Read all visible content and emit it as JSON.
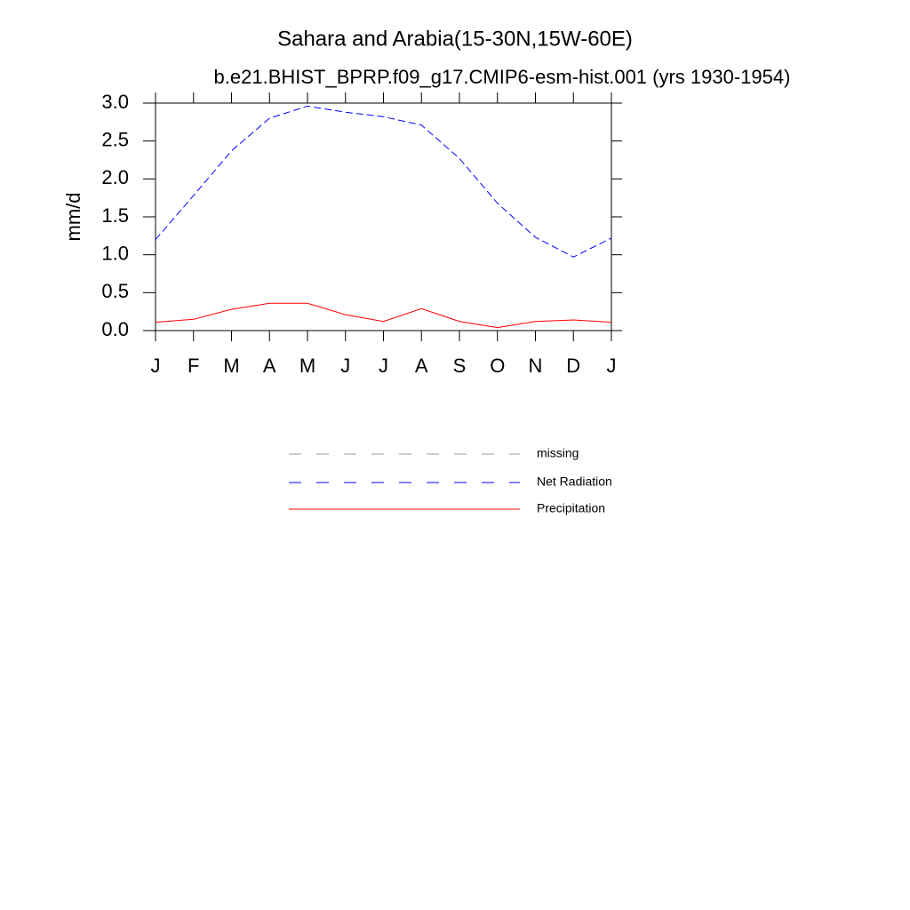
{
  "chart_data": {
    "type": "line",
    "title": "Sahara and Arabia(15-30N,15W-60E)",
    "subtitle": "b.e21.BHIST_BPRP.f09_g17.CMIP6-esm-hist.001 (yrs 1930-1954)",
    "y_label": "mm/d",
    "categories": [
      "J",
      "F",
      "M",
      "A",
      "M",
      "J",
      "J",
      "A",
      "S",
      "O",
      "N",
      "D",
      "J"
    ],
    "ylim": [
      0,
      3
    ],
    "yticks": [
      {
        "value": 0,
        "label": "0.0"
      },
      0.5,
      {
        "value": 1,
        "label": "1.0"
      },
      1.5,
      {
        "value": 2,
        "label": "2.0"
      },
      2.5,
      {
        "value": 3,
        "label": "3.0"
      }
    ],
    "series": [
      {
        "name": "missing",
        "color": "#999999",
        "dash": true,
        "values": [
          null,
          null,
          null,
          null,
          null,
          null,
          null,
          null,
          null,
          null,
          null,
          null,
          null
        ]
      },
      {
        "name": "Net Radiation",
        "color": "#0000ff",
        "dash": true,
        "values": [
          1.2,
          1.78,
          2.37,
          2.8,
          2.96,
          2.88,
          2.82,
          2.71,
          2.27,
          1.68,
          1.23,
          0.97,
          1.22
        ]
      },
      {
        "name": "Precipitation",
        "color": "#ff0000",
        "dash": false,
        "values": [
          0.11,
          0.15,
          0.28,
          0.36,
          0.36,
          0.21,
          0.12,
          0.29,
          0.12,
          0.04,
          0.12,
          0.14,
          0.11
        ]
      }
    ]
  }
}
